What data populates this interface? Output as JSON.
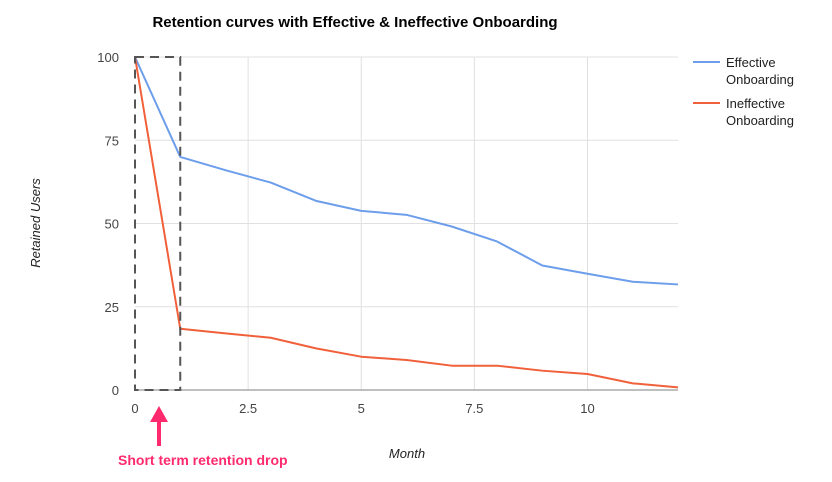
{
  "chart_data": {
    "type": "line",
    "title": "Retention curves with Effective & Ineffective Onboarding",
    "xlabel": "Month",
    "ylabel": "Retained Users",
    "xlim": [
      0,
      12
    ],
    "ylim": [
      0,
      100
    ],
    "x_ticks": [
      0,
      2.5,
      5,
      7.5,
      10
    ],
    "x_tick_labels": [
      "0",
      "2.5",
      "5",
      "7.5",
      "10"
    ],
    "y_ticks": [
      0,
      25,
      50,
      75,
      100
    ],
    "y_tick_labels": [
      "0",
      "25",
      "50",
      "75",
      "100"
    ],
    "grid": true,
    "legend_position": "right",
    "x": [
      0,
      1,
      2,
      3,
      4,
      5,
      6,
      7,
      8,
      9,
      10,
      11,
      12
    ],
    "series": [
      {
        "name": "Effective Onboarding",
        "name_lines": [
          "Effective",
          "Onboarding"
        ],
        "color": "#6d9eeb",
        "values": [
          100,
          70,
          66,
          62.3,
          56.8,
          53.8,
          52.6,
          49.1,
          44.6,
          37.4,
          34.9,
          32.5,
          31.7
        ]
      },
      {
        "name": "Ineffective Onboarding",
        "name_lines": [
          "Ineffective",
          "Onboarding"
        ],
        "color": "#f0603a",
        "values": [
          100,
          18.4,
          17,
          15.7,
          12.5,
          10,
          9,
          7.3,
          7.3,
          5.8,
          4.8,
          2,
          0.8
        ]
      }
    ],
    "annotation": {
      "text": "Short term retention drop",
      "color": "#ff2a6d",
      "highlight_x_range": [
        0,
        1
      ]
    }
  }
}
